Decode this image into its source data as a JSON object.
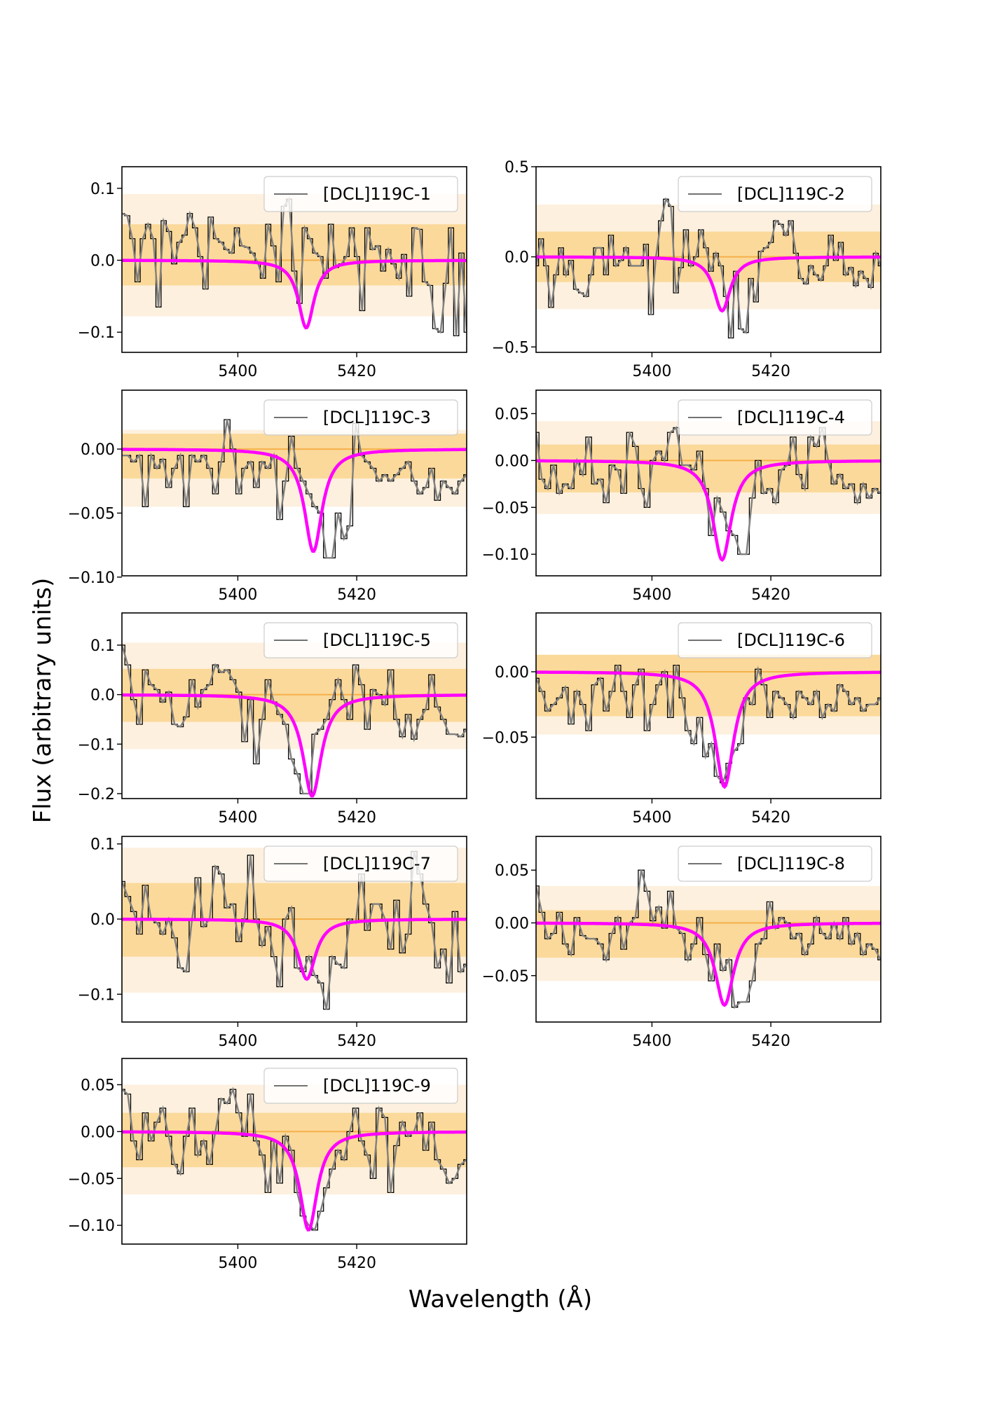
{
  "figure": {
    "ylabel": "Flux (arbitrary units)",
    "xlabel": "Wavelength (Å)"
  },
  "colors": {
    "observed": "#000000",
    "smoothed": "#808080",
    "model": "#ff00ff",
    "band_inner": "#fbd99a",
    "band_outer": "#fdf0de",
    "zero_line": "#f5b04a"
  },
  "chart_data": [
    {
      "type": "line",
      "label": "[DCL]119C-1",
      "xlim": [
        5380.5,
        5438.5
      ],
      "ylim": [
        -0.128,
        0.13
      ],
      "yticks": [
        -0.1,
        0.0,
        0.1
      ],
      "ytick_labels": [
        "−0.1",
        "0.0",
        "0.1"
      ],
      "xticks": [
        5400,
        5420
      ],
      "xtick_labels": [
        "5400",
        "5420"
      ],
      "band_inner": [
        -0.035,
        0.05
      ],
      "band_outer": [
        -0.078,
        0.092
      ],
      "model_depth": 0.094,
      "model_center": 5411.5,
      "model_width": 1.6,
      "flux": [
        0.065,
        0.062,
        0.03,
        -0.03,
        0.03,
        0.05,
        0.03,
        -0.065,
        0.055,
        0.04,
        -0.005,
        0.025,
        0.035,
        0.065,
        0.045,
        0.005,
        -0.04,
        0.06,
        0.03,
        0.025,
        0.015,
        0.01,
        0.045,
        0.02,
        0.018,
        0.01,
        -0.003,
        -0.025,
        0.05,
        0.02,
        -0.03,
        0.075,
        0.085,
        -0.015,
        -0.06,
        0.045,
        0.03,
        0.01,
        0.005,
        -0.025,
        0.05,
        -0.01,
        -0.005,
        0.005,
        0.045,
        0.005,
        -0.07,
        0.045,
        0.015,
        0.02,
        -0.015,
        0.015,
        -0.005,
        -0.025,
        0.008,
        -0.05,
        0.045,
        0.043,
        -0.03,
        -0.035,
        -0.095,
        -0.1,
        -0.032,
        0.045,
        -0.105,
        0.01,
        -0.1
      ]
    },
    {
      "type": "line",
      "label": "[DCL]119C-2",
      "xlim": [
        5380.5,
        5438.5
      ],
      "ylim": [
        -0.53,
        0.5
      ],
      "yticks": [
        -0.5,
        0.0,
        0.5
      ],
      "ytick_labels": [
        "−0.5",
        "0.0",
        "0.5"
      ],
      "xticks": [
        5400,
        5420
      ],
      "xtick_labels": [
        "5400",
        "5420"
      ],
      "band_inner": [
        -0.14,
        0.14
      ],
      "band_outer": [
        -0.29,
        0.29
      ],
      "model_depth": 0.3,
      "model_center": 5411.8,
      "model_width": 1.7,
      "flux": [
        -0.05,
        0.1,
        -0.05,
        -0.28,
        -0.1,
        0.05,
        -0.1,
        -0.02,
        -0.18,
        -0.2,
        -0.22,
        -0.1,
        0.05,
        0.05,
        -0.1,
        0.12,
        -0.05,
        -0.02,
        0.05,
        -0.05,
        -0.05,
        -0.05,
        0.07,
        -0.32,
        0.0,
        0.2,
        0.32,
        0.28,
        -0.2,
        -0.06,
        0.15,
        -0.05,
        0.0,
        0.15,
        0.05,
        -0.08,
        0.02,
        -0.05,
        -0.22,
        -0.45,
        -0.08,
        -0.4,
        -0.42,
        -0.12,
        -0.25,
        0.03,
        0.05,
        0.08,
        0.2,
        0.18,
        0.12,
        0.2,
        0.02,
        -0.12,
        -0.15,
        -0.05,
        -0.1,
        -0.13,
        -0.05,
        0.12,
        -0.02,
        0.08,
        -0.1,
        -0.06,
        -0.16,
        -0.08,
        -0.12,
        -0.17,
        0.02,
        -0.05
      ]
    },
    {
      "type": "line",
      "label": "[DCL]119C-3",
      "xlim": [
        5380.5,
        5438.5
      ],
      "ylim": [
        -0.099,
        0.046
      ],
      "yticks": [
        -0.1,
        -0.05,
        0.0
      ],
      "ytick_labels": [
        "−0.10",
        "−0.05",
        "0.00"
      ],
      "xticks": [
        5400,
        5420
      ],
      "xtick_labels": [
        "5400",
        "5420"
      ],
      "band_inner": [
        -0.023,
        0.012
      ],
      "band_outer": [
        -0.045,
        0.015
      ],
      "model_depth": 0.08,
      "model_center": 5412.7,
      "model_width": 1.8,
      "flux": [
        -0.005,
        -0.005,
        -0.01,
        -0.005,
        -0.045,
        -0.005,
        -0.015,
        -0.008,
        -0.03,
        -0.015,
        -0.005,
        -0.045,
        -0.005,
        -0.01,
        -0.005,
        -0.015,
        -0.035,
        -0.01,
        0.023,
        0.0,
        -0.035,
        -0.015,
        -0.01,
        -0.03,
        -0.01,
        -0.015,
        -0.005,
        -0.055,
        -0.025,
        0.01,
        -0.015,
        -0.025,
        -0.035,
        -0.045,
        -0.05,
        -0.085,
        -0.085,
        -0.05,
        -0.07,
        -0.06,
        0.02,
        -0.005,
        -0.01,
        -0.015,
        -0.025,
        -0.02,
        -0.025,
        -0.02,
        -0.015,
        -0.01,
        -0.025,
        -0.035,
        -0.03,
        -0.015,
        -0.04,
        -0.025,
        -0.03,
        -0.035,
        -0.025,
        -0.02
      ]
    },
    {
      "type": "line",
      "label": "[DCL]119C-4",
      "xlim": [
        5380.5,
        5438.5
      ],
      "ylim": [
        -0.123,
        0.075
      ],
      "yticks": [
        -0.1,
        -0.05,
        0.0,
        0.05
      ],
      "ytick_labels": [
        "−0.10",
        "−0.05",
        "0.00",
        "0.05"
      ],
      "xticks": [
        5400,
        5420
      ],
      "xtick_labels": [
        "5400",
        "5420"
      ],
      "band_inner": [
        -0.034,
        0.017
      ],
      "band_outer": [
        -0.057,
        0.042
      ],
      "model_depth": 0.106,
      "model_center": 5411.8,
      "model_width": 1.9,
      "flux": [
        0.03,
        -0.02,
        -0.03,
        -0.005,
        -0.035,
        -0.025,
        -0.03,
        0.0,
        -0.015,
        0.025,
        -0.025,
        -0.02,
        -0.045,
        -0.005,
        -0.01,
        -0.035,
        0.03,
        0.015,
        -0.03,
        -0.05,
        0.0,
        0.01,
        0.0,
        0.03,
        0.035,
        -0.005,
        -0.005,
        -0.01,
        0.01,
        -0.03,
        -0.08,
        -0.04,
        -0.055,
        -0.075,
        -0.08,
        -0.1,
        -0.1,
        -0.04,
        0.0,
        -0.035,
        -0.03,
        -0.045,
        -0.01,
        -0.005,
        0.025,
        -0.015,
        -0.03,
        0.025,
        0.015,
        0.035,
        0.0,
        -0.025,
        -0.015,
        -0.03,
        -0.025,
        -0.045,
        -0.025,
        -0.04,
        -0.03,
        -0.035
      ]
    },
    {
      "type": "line",
      "label": "[DCL]119C-5",
      "xlim": [
        5380.5,
        5438.5
      ],
      "ylim": [
        -0.21,
        0.165
      ],
      "yticks": [
        -0.2,
        -0.1,
        0.0,
        0.1
      ],
      "ytick_labels": [
        "−0.2",
        "−0.1",
        "0.0",
        "0.1"
      ],
      "xticks": [
        5400,
        5420
      ],
      "xtick_labels": [
        "5400",
        "5420"
      ],
      "band_inner": [
        -0.055,
        0.052
      ],
      "band_outer": [
        -0.11,
        0.105
      ],
      "model_depth": 0.205,
      "model_center": 5412.5,
      "model_width": 1.9,
      "flux": [
        0.1,
        0.06,
        -0.01,
        -0.06,
        0.05,
        0.02,
        0.01,
        -0.015,
        0.005,
        -0.06,
        -0.065,
        -0.045,
        0.03,
        -0.025,
        0.01,
        0.02,
        0.06,
        0.045,
        0.05,
        0.03,
        0.005,
        -0.095,
        -0.01,
        -0.14,
        -0.05,
        0.03,
        -0.015,
        -0.04,
        -0.06,
        -0.13,
        -0.16,
        -0.2,
        -0.2,
        -0.08,
        -0.07,
        -0.05,
        -0.01,
        0.03,
        -0.01,
        -0.05,
        0.06,
        0.02,
        -0.07,
        0.01,
        0.0,
        -0.02,
        0.05,
        -0.05,
        -0.085,
        -0.04,
        -0.09,
        -0.05,
        -0.03,
        0.04,
        -0.025,
        -0.05,
        -0.08,
        -0.08,
        -0.085,
        -0.07
      ]
    },
    {
      "type": "line",
      "label": "[DCL]119C-6",
      "xlim": [
        5380.5,
        5438.5
      ],
      "ylim": [
        -0.097,
        0.045
      ],
      "yticks": [
        -0.05,
        0.0
      ],
      "ytick_labels": [
        "−0.05",
        "0.00"
      ],
      "xticks": [
        5400,
        5420
      ],
      "xtick_labels": [
        "5400",
        "5420"
      ],
      "band_inner": [
        -0.034,
        0.013
      ],
      "band_outer": [
        -0.048,
        0.013
      ],
      "model_depth": 0.088,
      "model_center": 5412.2,
      "model_width": 1.9,
      "flux": [
        -0.005,
        -0.015,
        -0.03,
        -0.025,
        -0.02,
        -0.012,
        -0.04,
        -0.015,
        -0.025,
        -0.045,
        -0.01,
        -0.005,
        -0.03,
        -0.015,
        0.005,
        -0.015,
        -0.035,
        -0.01,
        0.002,
        -0.045,
        -0.025,
        -0.01,
        0.0,
        -0.035,
        0.005,
        -0.02,
        -0.045,
        -0.055,
        -0.035,
        -0.065,
        -0.055,
        -0.08,
        -0.085,
        -0.07,
        -0.06,
        -0.055,
        -0.02,
        -0.025,
        0.002,
        -0.01,
        -0.035,
        -0.015,
        -0.02,
        -0.025,
        -0.035,
        -0.015,
        -0.02,
        -0.025,
        -0.015,
        -0.035,
        -0.025,
        -0.03,
        -0.01,
        -0.015,
        -0.025,
        -0.02,
        -0.03,
        -0.025,
        -0.025,
        -0.02
      ]
    },
    {
      "type": "line",
      "label": "[DCL]119C-7",
      "xlim": [
        5380.5,
        5438.5
      ],
      "ylim": [
        -0.137,
        0.11
      ],
      "yticks": [
        -0.1,
        0.0,
        0.1
      ],
      "ytick_labels": [
        "−0.1",
        "0.0",
        "0.1"
      ],
      "xticks": [
        5400,
        5420
      ],
      "xtick_labels": [
        "5400",
        "5420"
      ],
      "band_inner": [
        -0.05,
        0.048
      ],
      "band_outer": [
        -0.098,
        0.095
      ],
      "model_depth": 0.08,
      "model_center": 5411.6,
      "model_width": 1.8,
      "flux": [
        0.05,
        0.03,
        0.01,
        -0.02,
        0.045,
        0.0,
        -0.005,
        -0.02,
        0.0,
        -0.025,
        -0.065,
        -0.07,
        0.0,
        0.055,
        -0.01,
        0.0,
        0.07,
        0.06,
        0.015,
        0.02,
        -0.03,
        0.0,
        0.085,
        0.0,
        -0.035,
        -0.01,
        -0.05,
        -0.09,
        0.0,
        0.015,
        -0.065,
        -0.07,
        -0.05,
        -0.075,
        -0.085,
        -0.12,
        -0.05,
        -0.06,
        -0.065,
        0.0,
        -0.005,
        0.06,
        -0.015,
        0.02,
        0.02,
        0.0,
        -0.04,
        0.025,
        -0.045,
        -0.02,
        0.09,
        0.06,
        0.02,
        -0.005,
        -0.065,
        -0.04,
        -0.085,
        0.01,
        -0.07,
        -0.06
      ]
    },
    {
      "type": "line",
      "label": "[DCL]119C-8",
      "xlim": [
        5380.5,
        5438.5
      ],
      "ylim": [
        -0.094,
        0.082
      ],
      "yticks": [
        -0.05,
        0.0,
        0.05
      ],
      "ytick_labels": [
        "−0.05",
        "0.00",
        "0.05"
      ],
      "xticks": [
        5400,
        5420
      ],
      "xtick_labels": [
        "5400",
        "5420"
      ],
      "band_inner": [
        -0.033,
        0.012
      ],
      "band_outer": [
        -0.055,
        0.035
      ],
      "model_depth": 0.078,
      "model_center": 5412.2,
      "model_width": 1.9,
      "flux": [
        0.035,
        0.01,
        -0.015,
        -0.01,
        0.01,
        -0.02,
        -0.03,
        0.005,
        -0.012,
        -0.015,
        -0.015,
        -0.02,
        -0.035,
        -0.01,
        0.005,
        -0.025,
        0.0,
        0.005,
        0.05,
        0.03,
        0.002,
        0.015,
        -0.005,
        0.03,
        -0.005,
        -0.01,
        -0.035,
        -0.02,
        0.005,
        -0.03,
        -0.055,
        -0.02,
        -0.045,
        -0.035,
        -0.08,
        -0.075,
        -0.075,
        -0.055,
        -0.02,
        -0.015,
        0.02,
        -0.005,
        0.005,
        0.0,
        -0.015,
        -0.01,
        -0.03,
        -0.02,
        0.005,
        -0.01,
        -0.015,
        0.0,
        -0.015,
        0.005,
        -0.02,
        -0.01,
        -0.03,
        -0.02,
        -0.025,
        -0.035
      ]
    },
    {
      "type": "line",
      "label": "[DCL]119C-9",
      "xlim": [
        5380.5,
        5438.5
      ],
      "ylim": [
        -0.12,
        0.078
      ],
      "yticks": [
        -0.1,
        -0.05,
        0.0,
        0.05
      ],
      "ytick_labels": [
        "−0.10",
        "−0.05",
        "0.00",
        "0.05"
      ],
      "xticks": [
        5400,
        5420
      ],
      "xtick_labels": [
        "5400",
        "5420"
      ],
      "band_inner": [
        -0.038,
        0.02
      ],
      "band_outer": [
        -0.067,
        0.05
      ],
      "model_depth": 0.105,
      "model_center": 5411.9,
      "model_width": 1.8,
      "flux": [
        0.045,
        0.04,
        -0.01,
        -0.03,
        0.02,
        -0.01,
        0.01,
        0.025,
        -0.005,
        -0.035,
        -0.045,
        -0.005,
        0.025,
        -0.025,
        -0.01,
        -0.035,
        0.0,
        0.035,
        0.03,
        0.045,
        0.02,
        -0.005,
        0.04,
        -0.01,
        -0.025,
        -0.065,
        -0.01,
        -0.055,
        -0.005,
        -0.02,
        -0.065,
        -0.09,
        -0.1,
        -0.105,
        -0.085,
        -0.06,
        -0.04,
        -0.02,
        -0.03,
        0.0,
        0.025,
        -0.01,
        -0.025,
        -0.05,
        0.025,
        0.015,
        -0.065,
        -0.015,
        0.01,
        -0.005,
        0.0,
        0.02,
        -0.02,
        0.01,
        -0.03,
        -0.04,
        -0.055,
        -0.05,
        -0.035,
        -0.03
      ]
    }
  ]
}
